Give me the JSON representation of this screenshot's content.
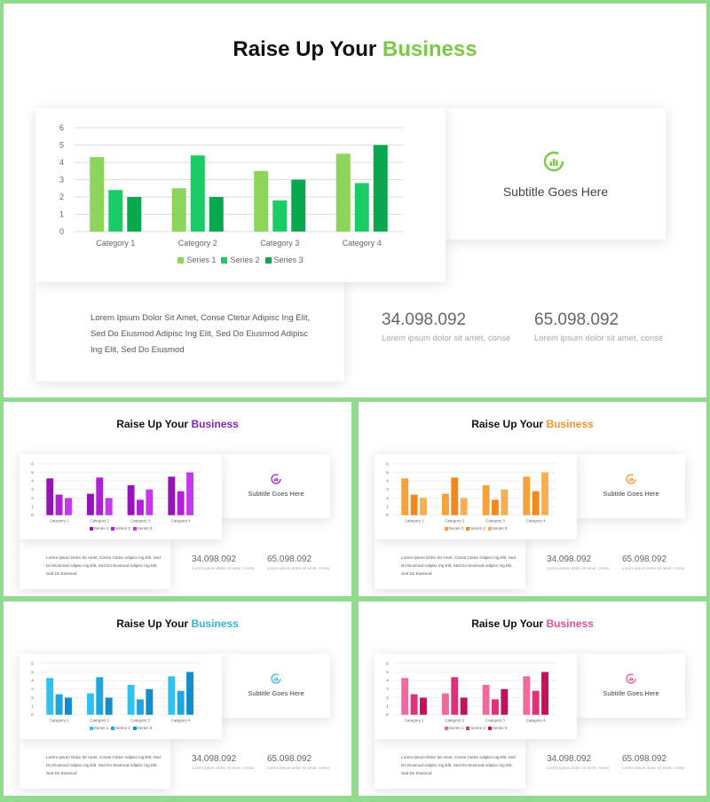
{
  "title": {
    "prefix": "Raise Up Your",
    "highlight": "Business"
  },
  "subtitle": "Subtitle  Goes Here",
  "lorem": "Lorem Ipsum Dolor Sit Amet, Conse Ctetur Adipisc Ing Elit, Sed Do Eiusmod Adipisc Ing Elit, Sed Do Eiusmod Adipisc Ing Elit, Sed Do Eiusmod",
  "stats": [
    {
      "value": "34.098.092",
      "label": "Lorem ipsum dolor sit amet, conse"
    },
    {
      "value": "65.098.092",
      "label": "Lorem ipsum dolor sit amet, conse"
    }
  ],
  "chart_data": {
    "type": "bar",
    "categories": [
      "Category 1",
      "Category 2",
      "Category 3",
      "Category 4"
    ],
    "series": [
      {
        "name": "Series 1",
        "values": [
          4.3,
          2.5,
          3.5,
          4.5
        ]
      },
      {
        "name": "Series 2",
        "values": [
          2.4,
          4.4,
          1.8,
          2.8
        ]
      },
      {
        "name": "Series 3",
        "values": [
          2,
          2,
          3,
          5
        ]
      }
    ],
    "ylim": [
      0,
      6
    ],
    "yticks": [
      0,
      1,
      2,
      3,
      4,
      5,
      6
    ],
    "grid": true,
    "legend": "bottom"
  },
  "variants": [
    {
      "theme": "green",
      "accent": "#7ac943",
      "series_colors": [
        "#8cd45a",
        "#19cc66",
        "#0aa84e"
      ]
    },
    {
      "theme": "purple",
      "accent": "#8e1fbf",
      "series_colors": [
        "#9514b8",
        "#b020d8",
        "#c935ee"
      ]
    },
    {
      "theme": "orange",
      "accent": "#f2932a",
      "series_colors": [
        "#f7a13a",
        "#f08a1c",
        "#f6b050"
      ]
    },
    {
      "theme": "blue",
      "accent": "#2fb6e0",
      "series_colors": [
        "#31c1ee",
        "#1ea7de",
        "#0e8fcc"
      ]
    },
    {
      "theme": "pink",
      "accent": "#e4508e",
      "series_colors": [
        "#f06aa0",
        "#e0307a",
        "#c0135a"
      ]
    }
  ]
}
